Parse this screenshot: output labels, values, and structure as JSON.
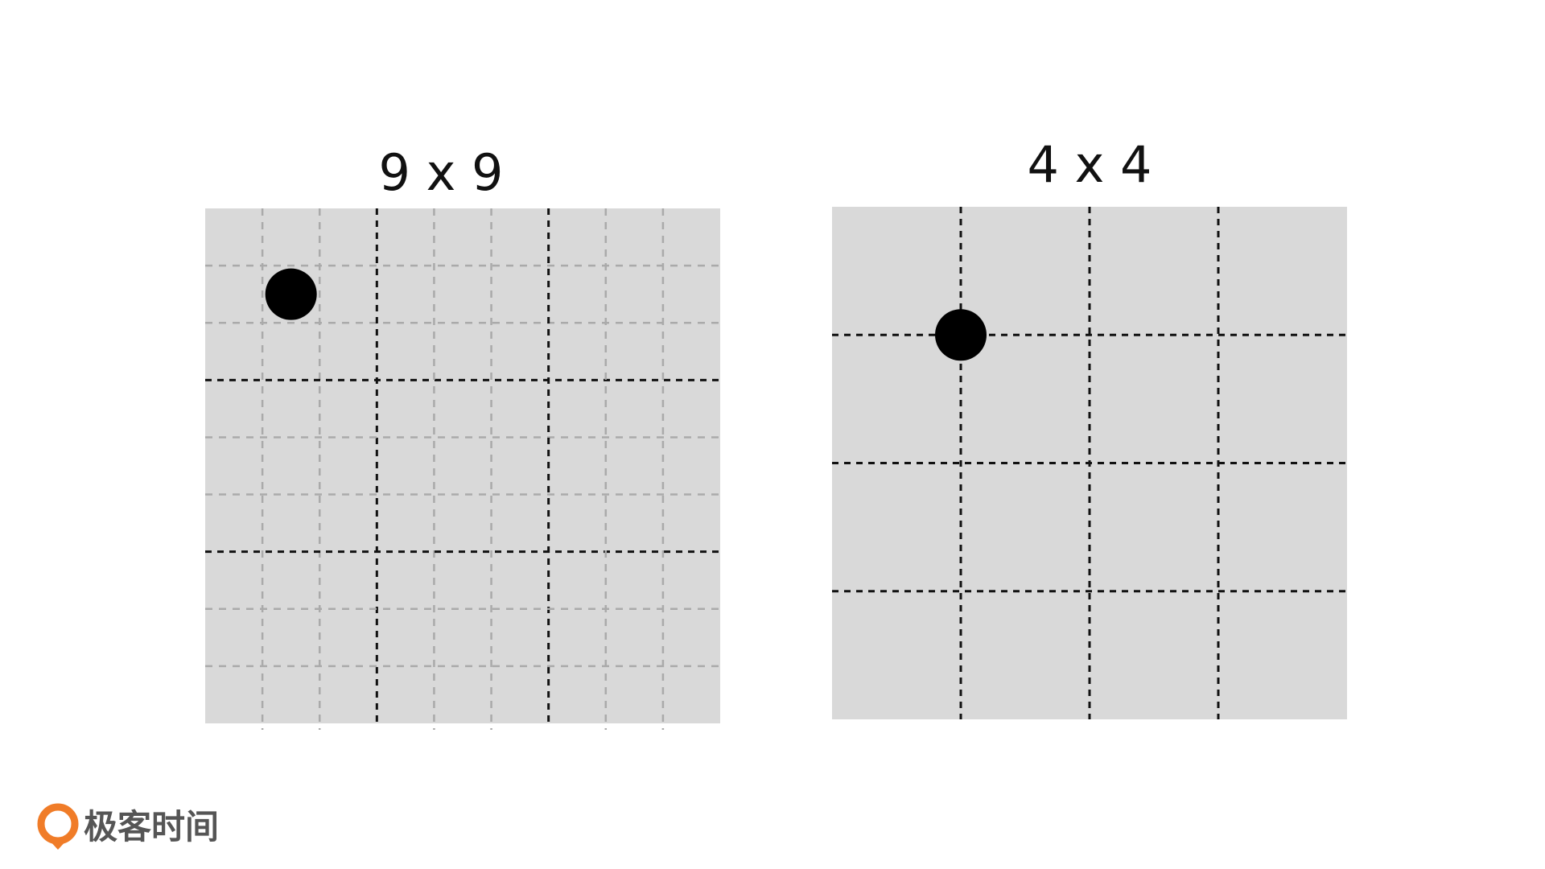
{
  "grids": [
    {
      "title": "9 x 9",
      "size": 9,
      "major_every": 3,
      "dot": {
        "row": 1,
        "col": 1,
        "position": "cell-center"
      },
      "show_minor_lines": true
    },
    {
      "title": "4 x 4",
      "size": 4,
      "major_every": 1,
      "dot": {
        "row": 1,
        "col": 1,
        "position": "cell-corner"
      },
      "show_minor_lines": false
    }
  ],
  "colors": {
    "panel": "#d9d9d9",
    "major_line": "#111111",
    "minor_line": "#aaaaaa",
    "dot": "#000000",
    "brand_orange": "#f07c28",
    "brand_text": "#555555"
  },
  "brand": {
    "name": "极客时间",
    "logo_icon": "geektime-logo-icon"
  }
}
